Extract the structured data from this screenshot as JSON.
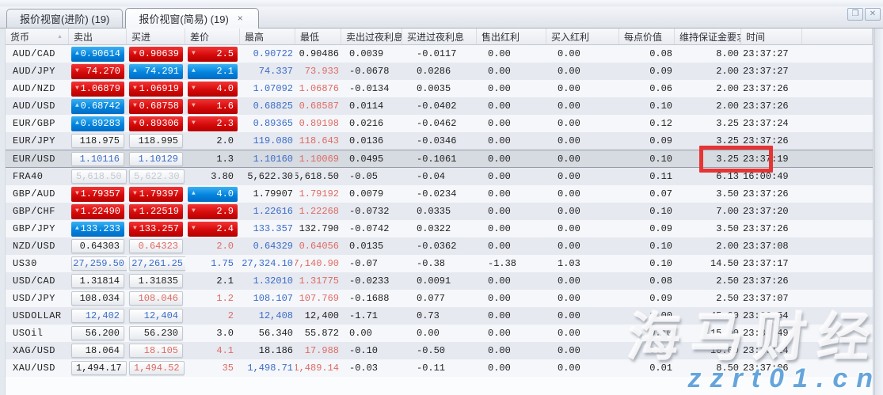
{
  "tabs": [
    {
      "label": "报价视窗(进阶) (19)",
      "active": false
    },
    {
      "label": "报价视窗(简易) (19)",
      "active": true,
      "close_glyph": "×"
    }
  ],
  "window_buttons": {
    "restore_glyph": "❒",
    "close_glyph": "✕"
  },
  "watermark": {
    "text": "海马财经",
    "url": "zzrt01.cn"
  },
  "colors": {
    "up_flash": "#0283dd",
    "down_flash": "#d50a0a",
    "up_text": "#3b6cc9",
    "down_text": "#df6a63",
    "disabled_text": "#c3c8d3",
    "annotation_red": "#e53434"
  },
  "table": {
    "columns": [
      "货币",
      "卖出",
      "买进",
      "差价",
      "最高",
      "最低",
      "卖出过夜利息",
      "买进过夜利息",
      "售出红利",
      "买入红利",
      "每点价值",
      "维持保证金要求",
      "时间"
    ],
    "rows": [
      {
        "symbol": "AUD/CAD",
        "sell": "0.90614",
        "sell_style": "up",
        "buy": "0.90639",
        "buy_style": "down",
        "spread": "2.5",
        "spread_style": "down",
        "high": "0.90722",
        "high_color": "blue",
        "low": "0.90486",
        "low_color": "black",
        "sell_swap": "0.0039",
        "buy_swap": "-0.0117",
        "sell_div": "0.00",
        "buy_div": "0.00",
        "pip": "0.08",
        "margin": "8.00",
        "time": "23:37:27",
        "selected": false
      },
      {
        "symbol": "AUD/JPY",
        "sell": "74.270",
        "sell_style": "down",
        "buy": "74.291",
        "buy_style": "up",
        "spread": "2.1",
        "spread_style": "up",
        "high": "74.337",
        "high_color": "blue",
        "low": "73.933",
        "low_color": "red",
        "sell_swap": "-0.0678",
        "buy_swap": "0.0286",
        "sell_div": "0.00",
        "buy_div": "0.00",
        "pip": "0.09",
        "margin": "2.00",
        "time": "23:37:27",
        "selected": false
      },
      {
        "symbol": "AUD/NZD",
        "sell": "1.06879",
        "sell_style": "down",
        "buy": "1.06919",
        "buy_style": "down",
        "spread": "4.0",
        "spread_style": "down",
        "high": "1.07092",
        "high_color": "blue",
        "low": "1.06876",
        "low_color": "red",
        "sell_swap": "-0.0134",
        "buy_swap": "0.0035",
        "sell_div": "0.00",
        "buy_div": "0.00",
        "pip": "0.06",
        "margin": "2.00",
        "time": "23:37:26",
        "selected": false
      },
      {
        "symbol": "AUD/USD",
        "sell": "0.68742",
        "sell_style": "up",
        "buy": "0.68758",
        "buy_style": "down",
        "spread": "1.6",
        "spread_style": "down",
        "high": "0.68825",
        "high_color": "blue",
        "low": "0.68587",
        "low_color": "red",
        "sell_swap": "0.0114",
        "buy_swap": "-0.0402",
        "sell_div": "0.00",
        "buy_div": "0.00",
        "pip": "0.10",
        "margin": "2.00",
        "time": "23:37:26",
        "selected": false
      },
      {
        "symbol": "EUR/GBP",
        "sell": "0.89283",
        "sell_style": "up",
        "buy": "0.89306",
        "buy_style": "down",
        "spread": "2.3",
        "spread_style": "down",
        "high": "0.89365",
        "high_color": "blue",
        "low": "0.89198",
        "low_color": "red",
        "sell_swap": "0.0216",
        "buy_swap": "-0.0462",
        "sell_div": "0.00",
        "buy_div": "0.00",
        "pip": "0.12",
        "margin": "3.25",
        "time": "23:37:24",
        "selected": false
      },
      {
        "symbol": "EUR/JPY",
        "sell": "118.975",
        "sell_style": "black",
        "buy": "118.995",
        "buy_style": "black",
        "spread": "2.0",
        "spread_style": "black",
        "high": "119.080",
        "high_color": "blue",
        "low": "118.643",
        "low_color": "red",
        "sell_swap": "0.0136",
        "buy_swap": "-0.0346",
        "sell_div": "0.00",
        "buy_div": "0.00",
        "pip": "0.09",
        "margin": "3.25",
        "time": "23:37:26",
        "selected": false
      },
      {
        "symbol": "EUR/USD",
        "sell": "1.10116",
        "sell_style": "blue",
        "buy": "1.10129",
        "buy_style": "blue",
        "spread": "1.3",
        "spread_style": "black",
        "high": "1.10160",
        "high_color": "blue",
        "low": "1.10069",
        "low_color": "red",
        "sell_swap": "0.0495",
        "buy_swap": "-0.1061",
        "sell_div": "0.00",
        "buy_div": "0.00",
        "pip": "0.10",
        "margin": "3.25",
        "time": "23:37:19",
        "selected": true
      },
      {
        "symbol": "FRA40",
        "sell": "5,618.50",
        "sell_style": "gray",
        "buy": "5,622.30",
        "buy_style": "gray",
        "spread": "3.80",
        "spread_style": "black",
        "high": "5,622.30",
        "high_color": "black",
        "low": "5,618.50",
        "low_color": "black",
        "sell_swap": "-0.05",
        "buy_swap": "-0.04",
        "sell_div": "0.00",
        "buy_div": "0.00",
        "pip": "0.11",
        "margin": "6.13",
        "time": "16:00:49",
        "selected": false
      },
      {
        "symbol": "GBP/AUD",
        "sell": "1.79357",
        "sell_style": "down",
        "buy": "1.79397",
        "buy_style": "down",
        "spread": "4.0",
        "spread_style": "up",
        "high": "1.79907",
        "high_color": "black",
        "low": "1.79192",
        "low_color": "red",
        "sell_swap": "0.0079",
        "buy_swap": "-0.0234",
        "sell_div": "0.00",
        "buy_div": "0.00",
        "pip": "0.07",
        "margin": "3.50",
        "time": "23:37:26",
        "selected": false
      },
      {
        "symbol": "GBP/CHF",
        "sell": "1.22490",
        "sell_style": "down",
        "buy": "1.22519",
        "buy_style": "down",
        "spread": "2.9",
        "spread_style": "down",
        "high": "1.22616",
        "high_color": "blue",
        "low": "1.22268",
        "low_color": "red",
        "sell_swap": "-0.0732",
        "buy_swap": "0.0335",
        "sell_div": "0.00",
        "buy_div": "0.00",
        "pip": "0.10",
        "margin": "7.00",
        "time": "23:37:20",
        "selected": false
      },
      {
        "symbol": "GBP/JPY",
        "sell": "133.233",
        "sell_style": "up",
        "buy": "133.257",
        "buy_style": "down",
        "spread": "2.4",
        "spread_style": "down",
        "high": "133.357",
        "high_color": "blue",
        "low": "132.790",
        "low_color": "black",
        "sell_swap": "-0.0742",
        "buy_swap": "0.0322",
        "sell_div": "0.00",
        "buy_div": "0.00",
        "pip": "0.09",
        "margin": "3.50",
        "time": "23:37:26",
        "selected": false
      },
      {
        "symbol": "NZD/USD",
        "sell": "0.64303",
        "sell_style": "black",
        "buy": "0.64323",
        "buy_style": "red",
        "spread": "2.0",
        "spread_style": "red",
        "high": "0.64329",
        "high_color": "blue",
        "low": "0.64056",
        "low_color": "red",
        "sell_swap": "0.0135",
        "buy_swap": "-0.0362",
        "sell_div": "0.00",
        "buy_div": "0.00",
        "pip": "0.10",
        "margin": "2.00",
        "time": "23:37:08",
        "selected": false
      },
      {
        "symbol": "US30",
        "sell": "27,259.50",
        "sell_style": "blue",
        "buy": "27,261.25",
        "buy_style": "blue",
        "spread": "1.75",
        "spread_style": "blue",
        "high": "27,324.10",
        "high_color": "blue",
        "low": "27,140.90",
        "low_color": "red",
        "sell_swap": "-0.07",
        "buy_swap": "-0.38",
        "sell_div": "-1.38",
        "buy_div": "1.03",
        "pip": "0.10",
        "margin": "14.50",
        "time": "23:37:17",
        "selected": false
      },
      {
        "symbol": "USD/CAD",
        "sell": "1.31814",
        "sell_style": "black",
        "buy": "1.31835",
        "buy_style": "black",
        "spread": "2.1",
        "spread_style": "black",
        "high": "1.32010",
        "high_color": "blue",
        "low": "1.31775",
        "low_color": "red",
        "sell_swap": "-0.0233",
        "buy_swap": "0.0091",
        "sell_div": "0.00",
        "buy_div": "0.00",
        "pip": "0.08",
        "margin": "2.50",
        "time": "23:37:26",
        "selected": false
      },
      {
        "symbol": "USD/JPY",
        "sell": "108.034",
        "sell_style": "black",
        "buy": "108.046",
        "buy_style": "red",
        "spread": "1.2",
        "spread_style": "red",
        "high": "108.107",
        "high_color": "blue",
        "low": "107.769",
        "low_color": "red",
        "sell_swap": "-0.1688",
        "buy_swap": "0.077",
        "sell_div": "0.00",
        "buy_div": "0.00",
        "pip": "0.09",
        "margin": "2.50",
        "time": "23:37:07",
        "selected": false
      },
      {
        "symbol": "USDOLLAR",
        "sell": "12,402",
        "sell_style": "blue",
        "buy": "12,404",
        "buy_style": "blue",
        "spread": "2",
        "spread_style": "red",
        "high": "12,408",
        "high_color": "blue",
        "low": "12,400",
        "low_color": "black",
        "sell_swap": "-1.71",
        "buy_swap": "0.73",
        "sell_div": "0.00",
        "buy_div": "0.00",
        "pip": "1.00",
        "margin": "45.00",
        "time": "23:36:54",
        "selected": false
      },
      {
        "symbol": "USOil",
        "sell": "56.200",
        "sell_style": "black",
        "buy": "56.230",
        "buy_style": "black",
        "spread": "3.0",
        "spread_style": "black",
        "high": "56.340",
        "high_color": "black",
        "low": "55.872",
        "low_color": "black",
        "sell_swap": "0.00",
        "buy_swap": "0.00",
        "sell_div": "0.00",
        "buy_div": "0.00",
        "pip": "0.10",
        "margin": "15.00",
        "time": "23:34:49",
        "selected": false
      },
      {
        "symbol": "XAG/USD",
        "sell": "18.064",
        "sell_style": "black",
        "buy": "18.105",
        "buy_style": "red",
        "spread": "4.1",
        "spread_style": "red",
        "high": "18.186",
        "high_color": "black",
        "low": "17.988",
        "low_color": "red",
        "sell_swap": "-0.10",
        "buy_swap": "-0.50",
        "sell_div": "0.00",
        "buy_div": "0.00",
        "pip": "0.50",
        "margin": "10.00",
        "time": "23:37:14",
        "selected": false
      },
      {
        "symbol": "XAU/USD",
        "sell": "1,494.17",
        "sell_style": "black",
        "buy": "1,494.52",
        "buy_style": "red",
        "spread": "35",
        "spread_style": "red",
        "high": "1,498.71",
        "high_color": "blue",
        "low": "1,489.14",
        "low_color": "red",
        "sell_swap": "-0.03",
        "buy_swap": "-0.11",
        "sell_div": "0.00",
        "buy_div": "0.00",
        "pip": "0.01",
        "margin": "8.50",
        "time": "23:37:06",
        "selected": false
      }
    ]
  }
}
